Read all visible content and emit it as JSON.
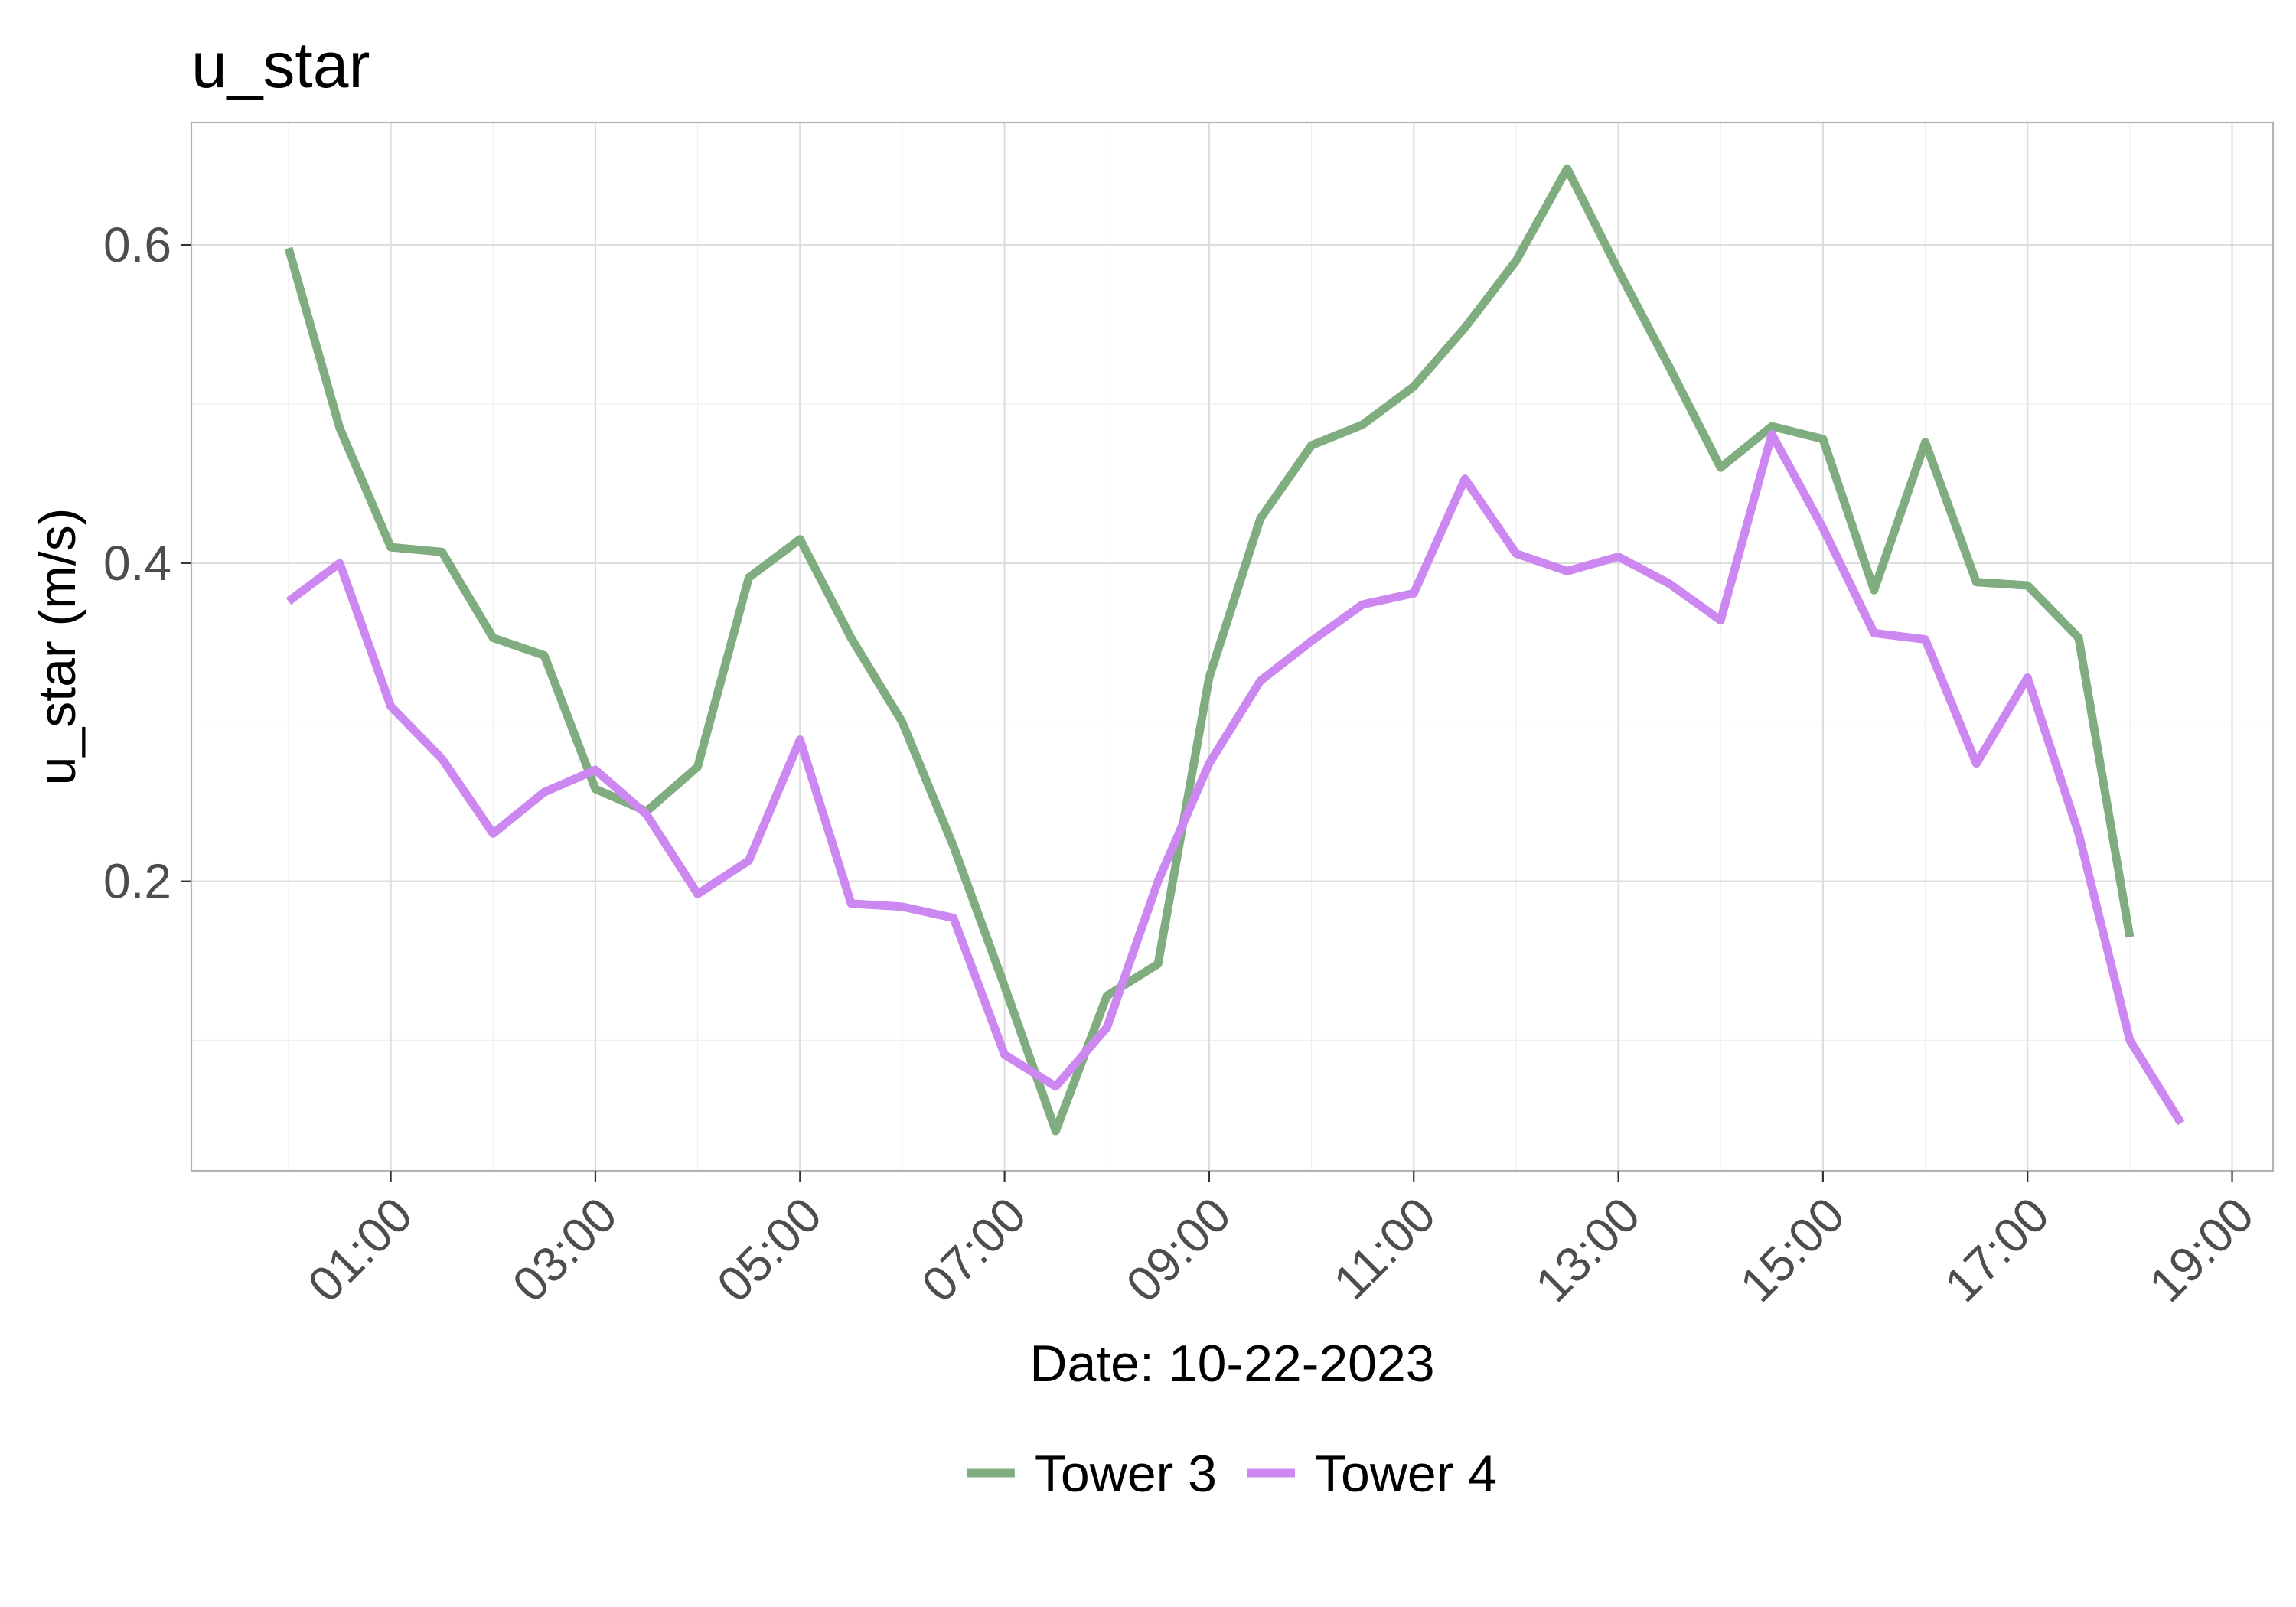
{
  "chart_data": {
    "type": "line",
    "title": "u_star",
    "xlabel": "Date: 10-22-2023",
    "ylabel": "u_star (m/s)",
    "x_hours": [
      0,
      0.5,
      1,
      1.5,
      2,
      2.5,
      3,
      3.5,
      4,
      4.5,
      5,
      5.5,
      6,
      6.5,
      7,
      7.5,
      8,
      8.5,
      9,
      9.5,
      10,
      10.5,
      11,
      11.5,
      12,
      12.5,
      13,
      13.5,
      14,
      14.5,
      15,
      15.5,
      16,
      16.5,
      17,
      17.5,
      18,
      18.5
    ],
    "xlim": [
      -0.95,
      19.4
    ],
    "ylim": [
      0.018,
      0.677
    ],
    "x_ticks": [
      "01:00",
      "03:00",
      "05:00",
      "07:00",
      "09:00",
      "11:00",
      "13:00",
      "15:00",
      "17:00",
      "19:00"
    ],
    "x_tick_hours": [
      1,
      3,
      5,
      7,
      9,
      11,
      13,
      15,
      17,
      19
    ],
    "y_ticks": [
      "0.2",
      "0.4",
      "0.6"
    ],
    "y_tick_values": [
      0.2,
      0.4,
      0.6
    ],
    "y_minor_values": [
      0.1,
      0.3,
      0.5
    ],
    "grid": true,
    "legend_position": "bottom",
    "series": [
      {
        "name": "Tower 3",
        "color": "#7fad7f",
        "values": [
          0.598,
          0.485,
          0.41,
          0.407,
          0.353,
          0.342,
          0.258,
          0.244,
          0.272,
          0.391,
          0.415,
          0.353,
          0.3,
          0.222,
          0.134,
          0.043,
          0.128,
          0.148,
          0.328,
          0.428,
          0.474,
          0.487,
          0.511,
          0.548,
          0.59,
          0.648,
          0.584,
          0.523,
          0.46,
          0.486,
          0.478,
          0.383,
          0.476,
          0.388,
          0.386,
          0.353,
          0.165,
          null
        ]
      },
      {
        "name": "Tower 4",
        "color": "#cc88f0",
        "values": [
          0.376,
          0.4,
          0.31,
          0.277,
          0.23,
          0.256,
          0.27,
          0.242,
          0.192,
          0.213,
          0.289,
          0.186,
          0.184,
          0.177,
          0.091,
          0.071,
          0.108,
          0.2,
          0.274,
          0.326,
          0.351,
          0.374,
          0.381,
          0.453,
          0.406,
          0.395,
          0.404,
          0.387,
          0.364,
          0.481,
          0.422,
          0.356,
          0.352,
          0.274,
          0.328,
          0.23,
          0.1,
          0.048
        ]
      }
    ]
  }
}
